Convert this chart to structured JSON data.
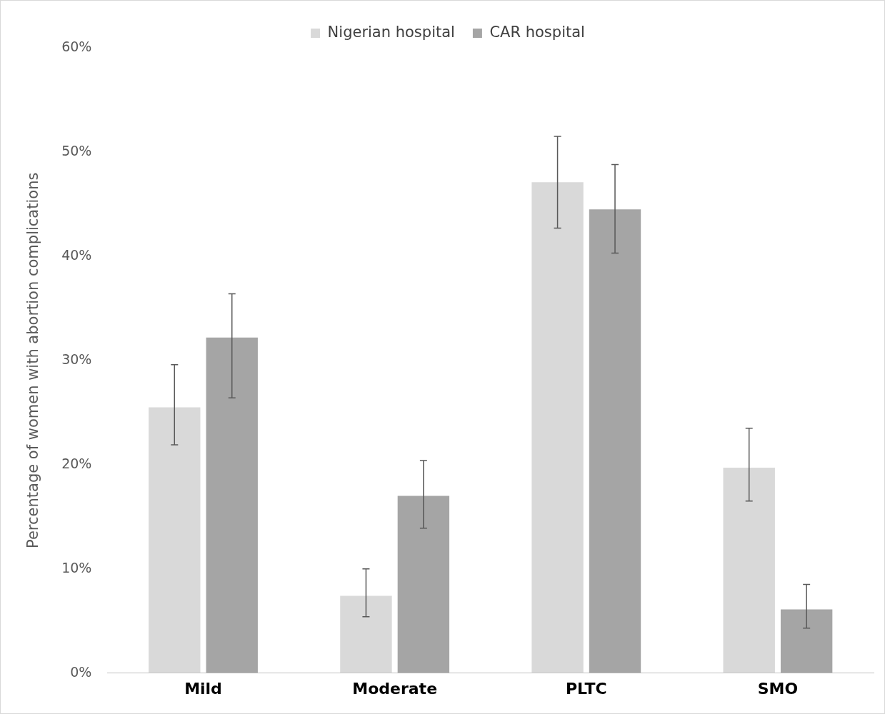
{
  "chart_data": {
    "type": "bar",
    "ylabel": "Percentage of women with abortion complications",
    "categories": [
      "Mild",
      "Moderate",
      "PLTC",
      "SMO"
    ],
    "series": [
      {
        "name": "Nigerian hospital",
        "color": "#d9d9d9",
        "values": [
          25.5,
          7.4,
          47.1,
          19.7
        ],
        "errors": [
          [
            21.9,
            29.6
          ],
          [
            5.4,
            10.0
          ],
          [
            42.7,
            51.5
          ],
          [
            16.5,
            23.5
          ]
        ]
      },
      {
        "name": "CAR hospital",
        "color": "#a5a5a5",
        "values": [
          32.2,
          17.0,
          44.5,
          6.1
        ],
        "errors": [
          [
            26.4,
            36.4
          ],
          [
            13.9,
            20.4
          ],
          [
            40.3,
            48.8
          ],
          [
            4.3,
            8.5
          ]
        ]
      }
    ],
    "ylim": [
      0,
      60
    ],
    "yticks": [
      {
        "value": 0,
        "label": "0%"
      },
      {
        "value": 10,
        "label": "10%"
      },
      {
        "value": 20,
        "label": "20%"
      },
      {
        "value": 30,
        "label": "30%"
      },
      {
        "value": 40,
        "label": "40%"
      },
      {
        "value": 50,
        "label": "50%"
      },
      {
        "value": 60,
        "label": "60%"
      }
    ],
    "grid": false,
    "legend": "top"
  }
}
